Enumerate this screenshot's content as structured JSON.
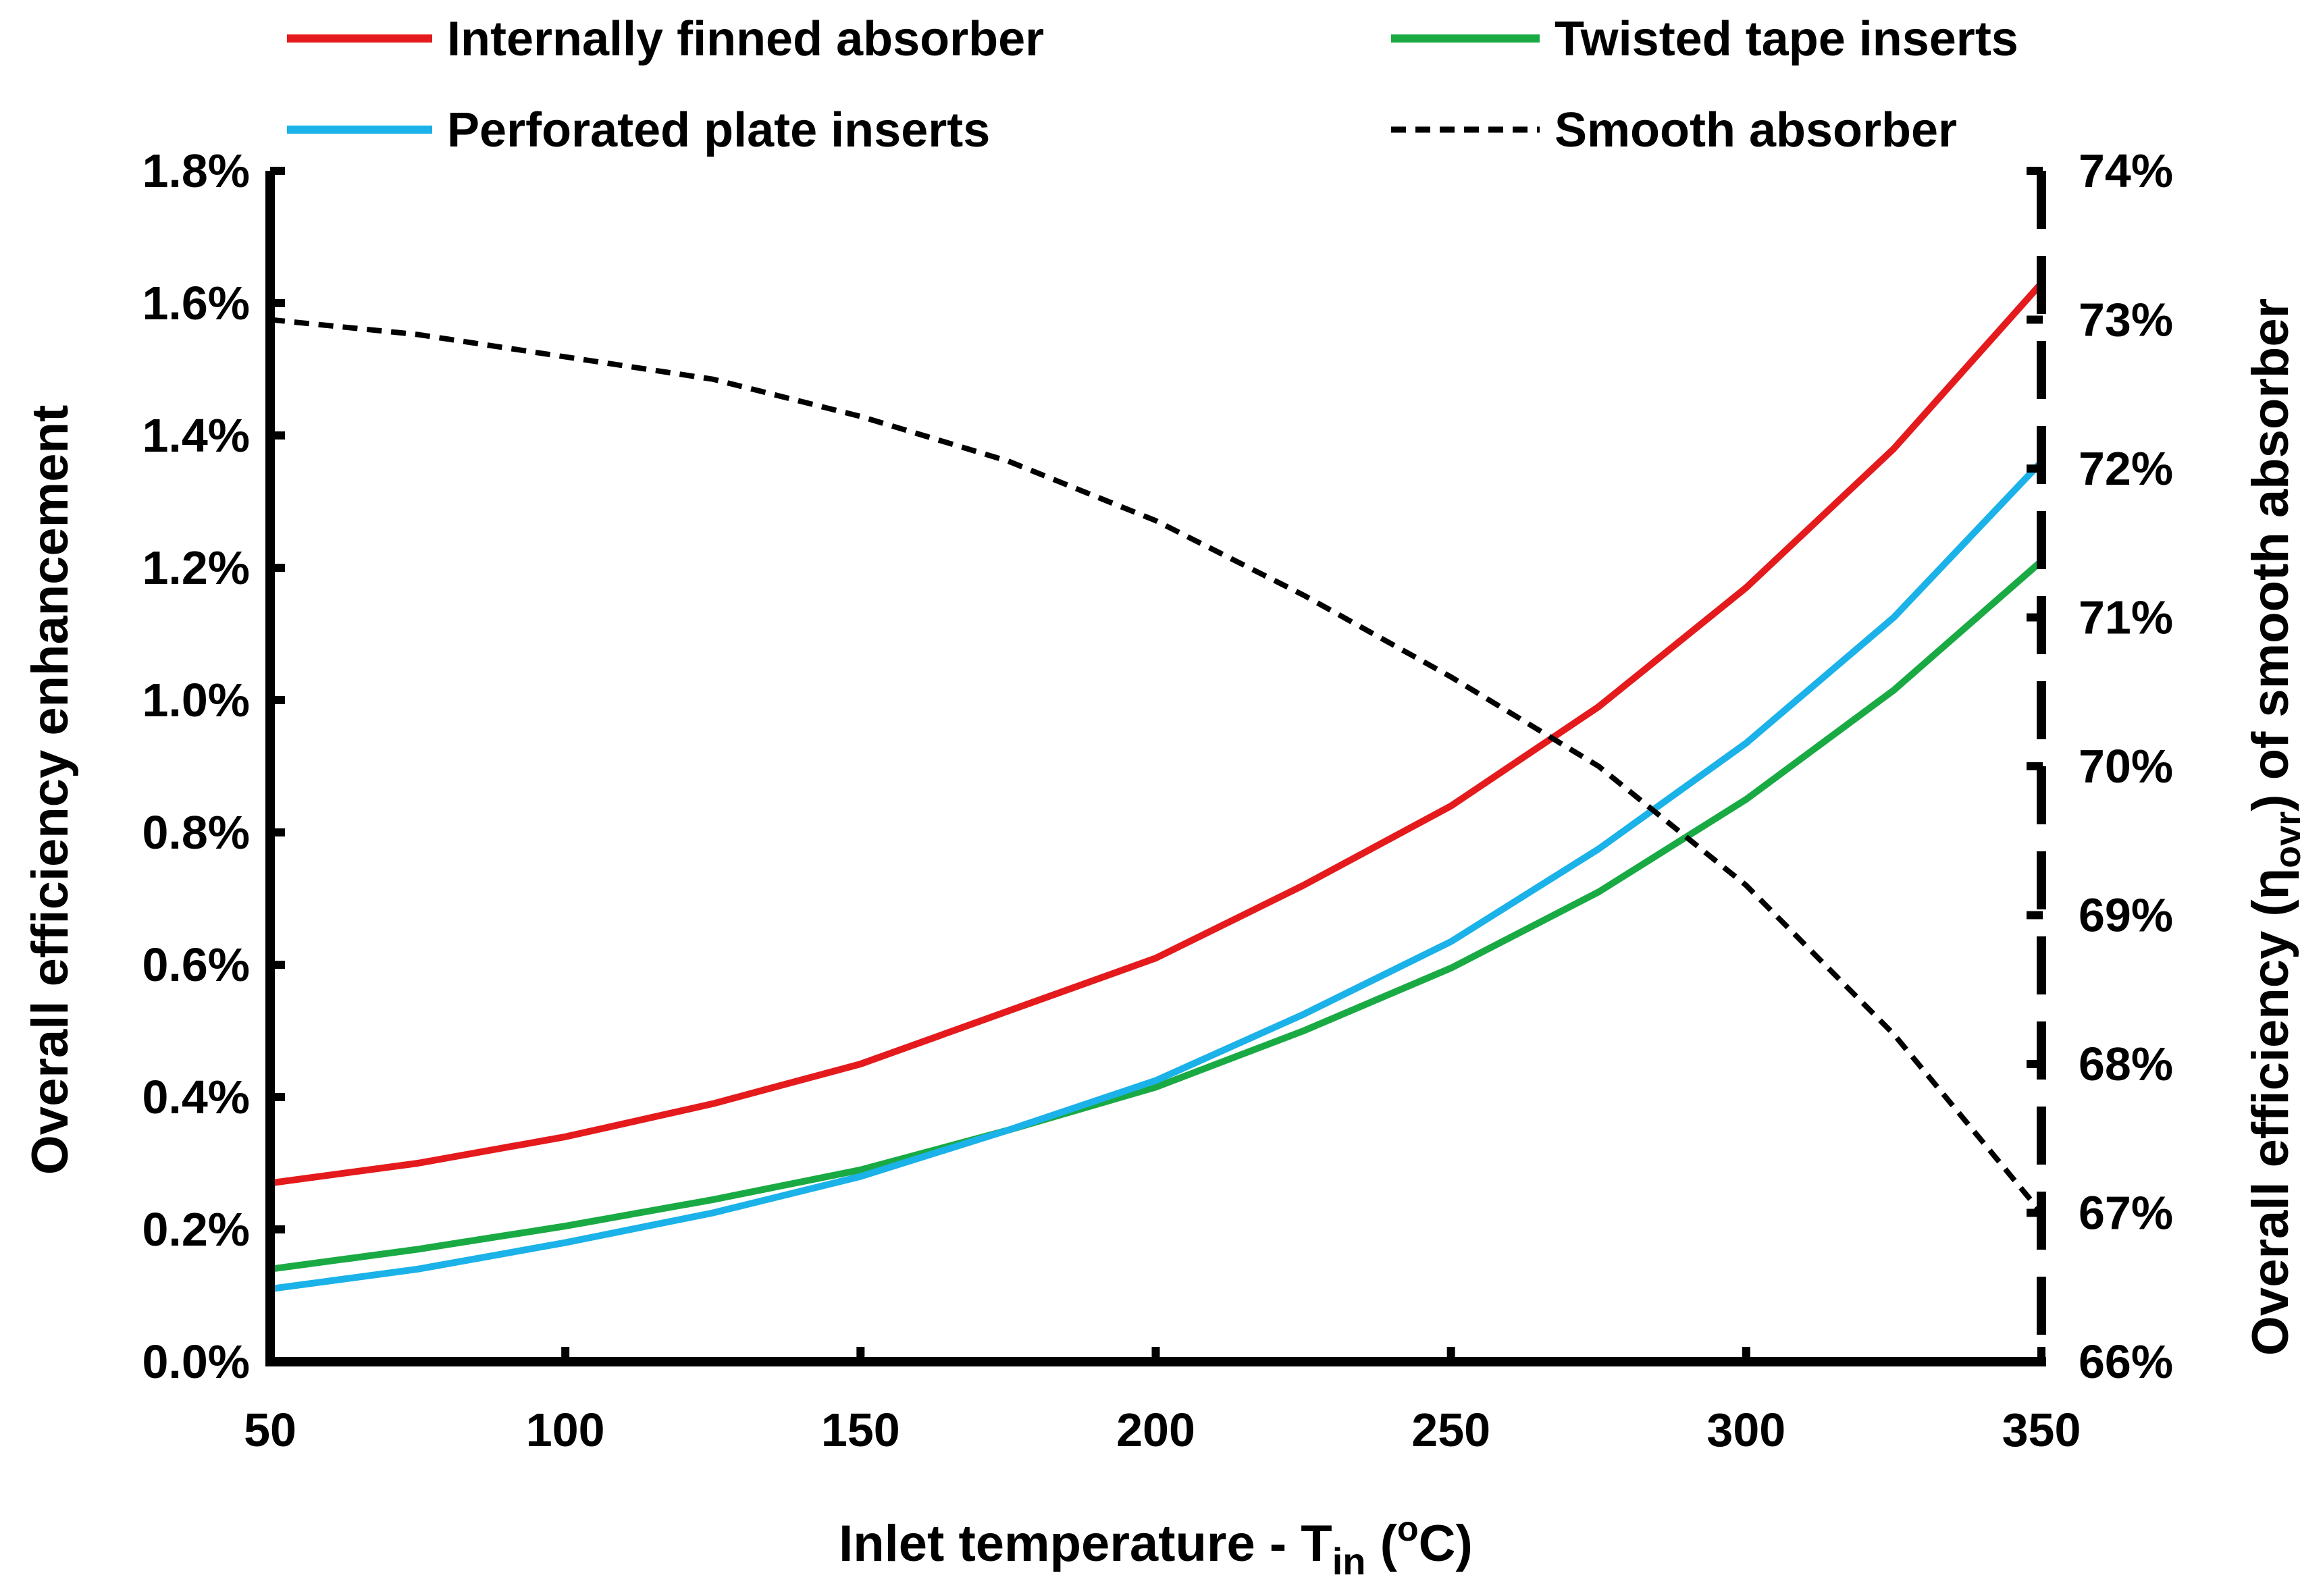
{
  "chart_data": {
    "type": "line",
    "xlabel": {
      "main": "Inlet temperature - T",
      "sub": "in",
      "tail_open": " (",
      "sup": "o",
      "tail_close": "C)"
    },
    "ylabel_left": "Overall efficiency enhancement",
    "ylabel_right": {
      "main": "Overall efficiency (η",
      "sub": "ovr",
      "tail": ") of smooth absorber"
    },
    "x": [
      50,
      75,
      100,
      125,
      150,
      175,
      200,
      225,
      250,
      275,
      300,
      325,
      350
    ],
    "xlim": [
      50,
      350
    ],
    "x_ticks": [
      50,
      100,
      150,
      200,
      250,
      300,
      350
    ],
    "x_tick_labels": [
      "50",
      "100",
      "150",
      "200",
      "250",
      "300",
      "350"
    ],
    "ylim_left": [
      0.0,
      1.8
    ],
    "y_left_ticks": [
      0.0,
      0.2,
      0.4,
      0.6,
      0.8,
      1.0,
      1.2,
      1.4,
      1.6,
      1.8
    ],
    "y_left_tick_labels": [
      "0.0%",
      "0.2%",
      "0.4%",
      "0.6%",
      "0.8%",
      "1.0%",
      "1.2%",
      "1.4%",
      "1.6%",
      "1.8%"
    ],
    "ylim_right": [
      66,
      74
    ],
    "y_right_ticks": [
      66,
      67,
      68,
      69,
      70,
      71,
      72,
      73,
      74
    ],
    "y_right_tick_labels": [
      "66%",
      "67%",
      "68%",
      "69%",
      "70%",
      "71%",
      "72%",
      "73%",
      "74%"
    ],
    "series": [
      {
        "name": "Internally finned absorber",
        "axis": "left",
        "color": "#e41a1c",
        "dash": "solid",
        "values": [
          0.27,
          0.3,
          0.34,
          0.39,
          0.45,
          0.53,
          0.61,
          0.72,
          0.84,
          0.99,
          1.17,
          1.38,
          1.63
        ]
      },
      {
        "name": "Twisted tape inserts",
        "axis": "left",
        "color": "#1aaa44",
        "dash": "solid",
        "values": [
          0.14,
          0.17,
          0.205,
          0.245,
          0.29,
          0.35,
          0.415,
          0.5,
          0.595,
          0.71,
          0.85,
          1.015,
          1.21
        ]
      },
      {
        "name": "Perforated plate inserts",
        "axis": "left",
        "color": "#1ab2e8",
        "dash": "solid",
        "values": [
          0.11,
          0.14,
          0.18,
          0.225,
          0.28,
          0.35,
          0.425,
          0.525,
          0.635,
          0.775,
          0.935,
          1.125,
          1.36
        ]
      },
      {
        "name": "Smooth absorber",
        "axis": "right",
        "color": "#000000",
        "dash": "dashed",
        "values": [
          73.0,
          72.9,
          72.75,
          72.6,
          72.35,
          72.05,
          71.65,
          71.15,
          70.6,
          70.0,
          69.2,
          68.2,
          67.0
        ]
      }
    ],
    "legend": {
      "position": "top",
      "columns": 2
    }
  }
}
